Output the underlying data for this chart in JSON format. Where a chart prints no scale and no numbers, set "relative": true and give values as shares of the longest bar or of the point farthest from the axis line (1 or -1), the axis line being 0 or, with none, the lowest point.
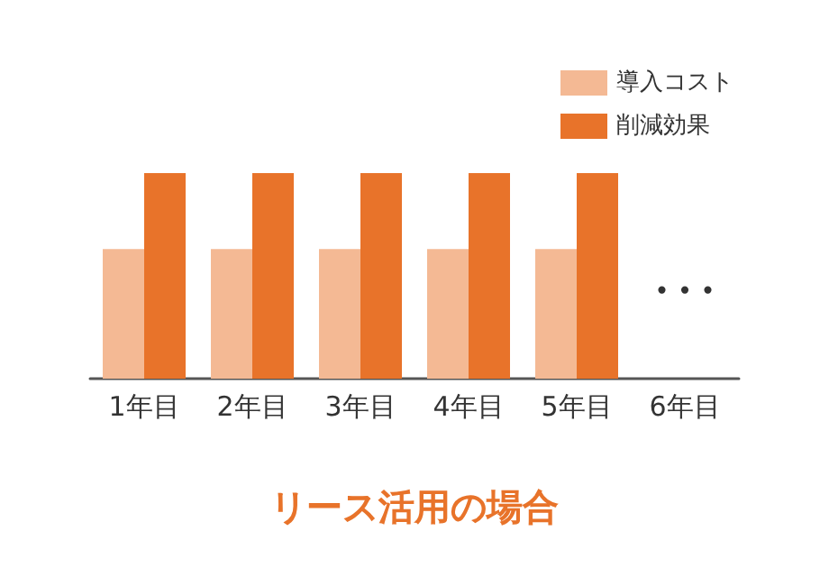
{
  "chart_data": {
    "type": "bar",
    "title": "リース活用の場合",
    "relative": true,
    "legend": "top right",
    "grid": false,
    "categories": [
      "1年目",
      "2年目",
      "3年目",
      "4年目",
      "5年目",
      "6年目"
    ],
    "series": [
      {
        "name": "導入コスト",
        "color": "#f4b994",
        "values": [
          0.63,
          0.63,
          0.63,
          0.63,
          0.63,
          null
        ]
      },
      {
        "name": "削減効果",
        "color": "#e8732a",
        "values": [
          1,
          1,
          1,
          1,
          1,
          null
        ]
      }
    ],
    "annotations": [
      "• • •"
    ]
  }
}
